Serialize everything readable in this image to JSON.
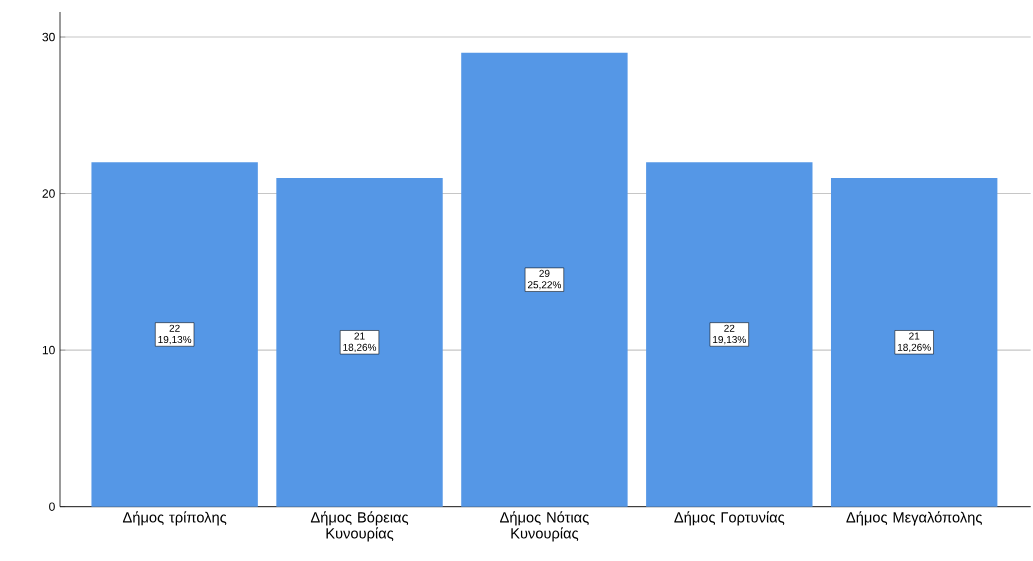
{
  "chart_data": {
    "type": "bar",
    "categories": [
      "Δήμος τρίπολης",
      "Δήμος Βόρειας Κυνουρίας",
      "Δήμος Νότιας Κυνουρίας",
      "Δήμος Γορτυνίας",
      "Δήμος Μεγαλόπολης"
    ],
    "values": [
      22,
      21,
      29,
      22,
      21
    ],
    "value_labels": [
      "22 19,13%",
      "21 18,26%",
      "29 25,22%",
      "22 19,13%",
      "21 18,26%"
    ],
    "color": "#5597e6",
    "ylim": [
      0,
      31.6
    ],
    "yticks": [
      0,
      10,
      20,
      30
    ],
    "grid": "y"
  }
}
